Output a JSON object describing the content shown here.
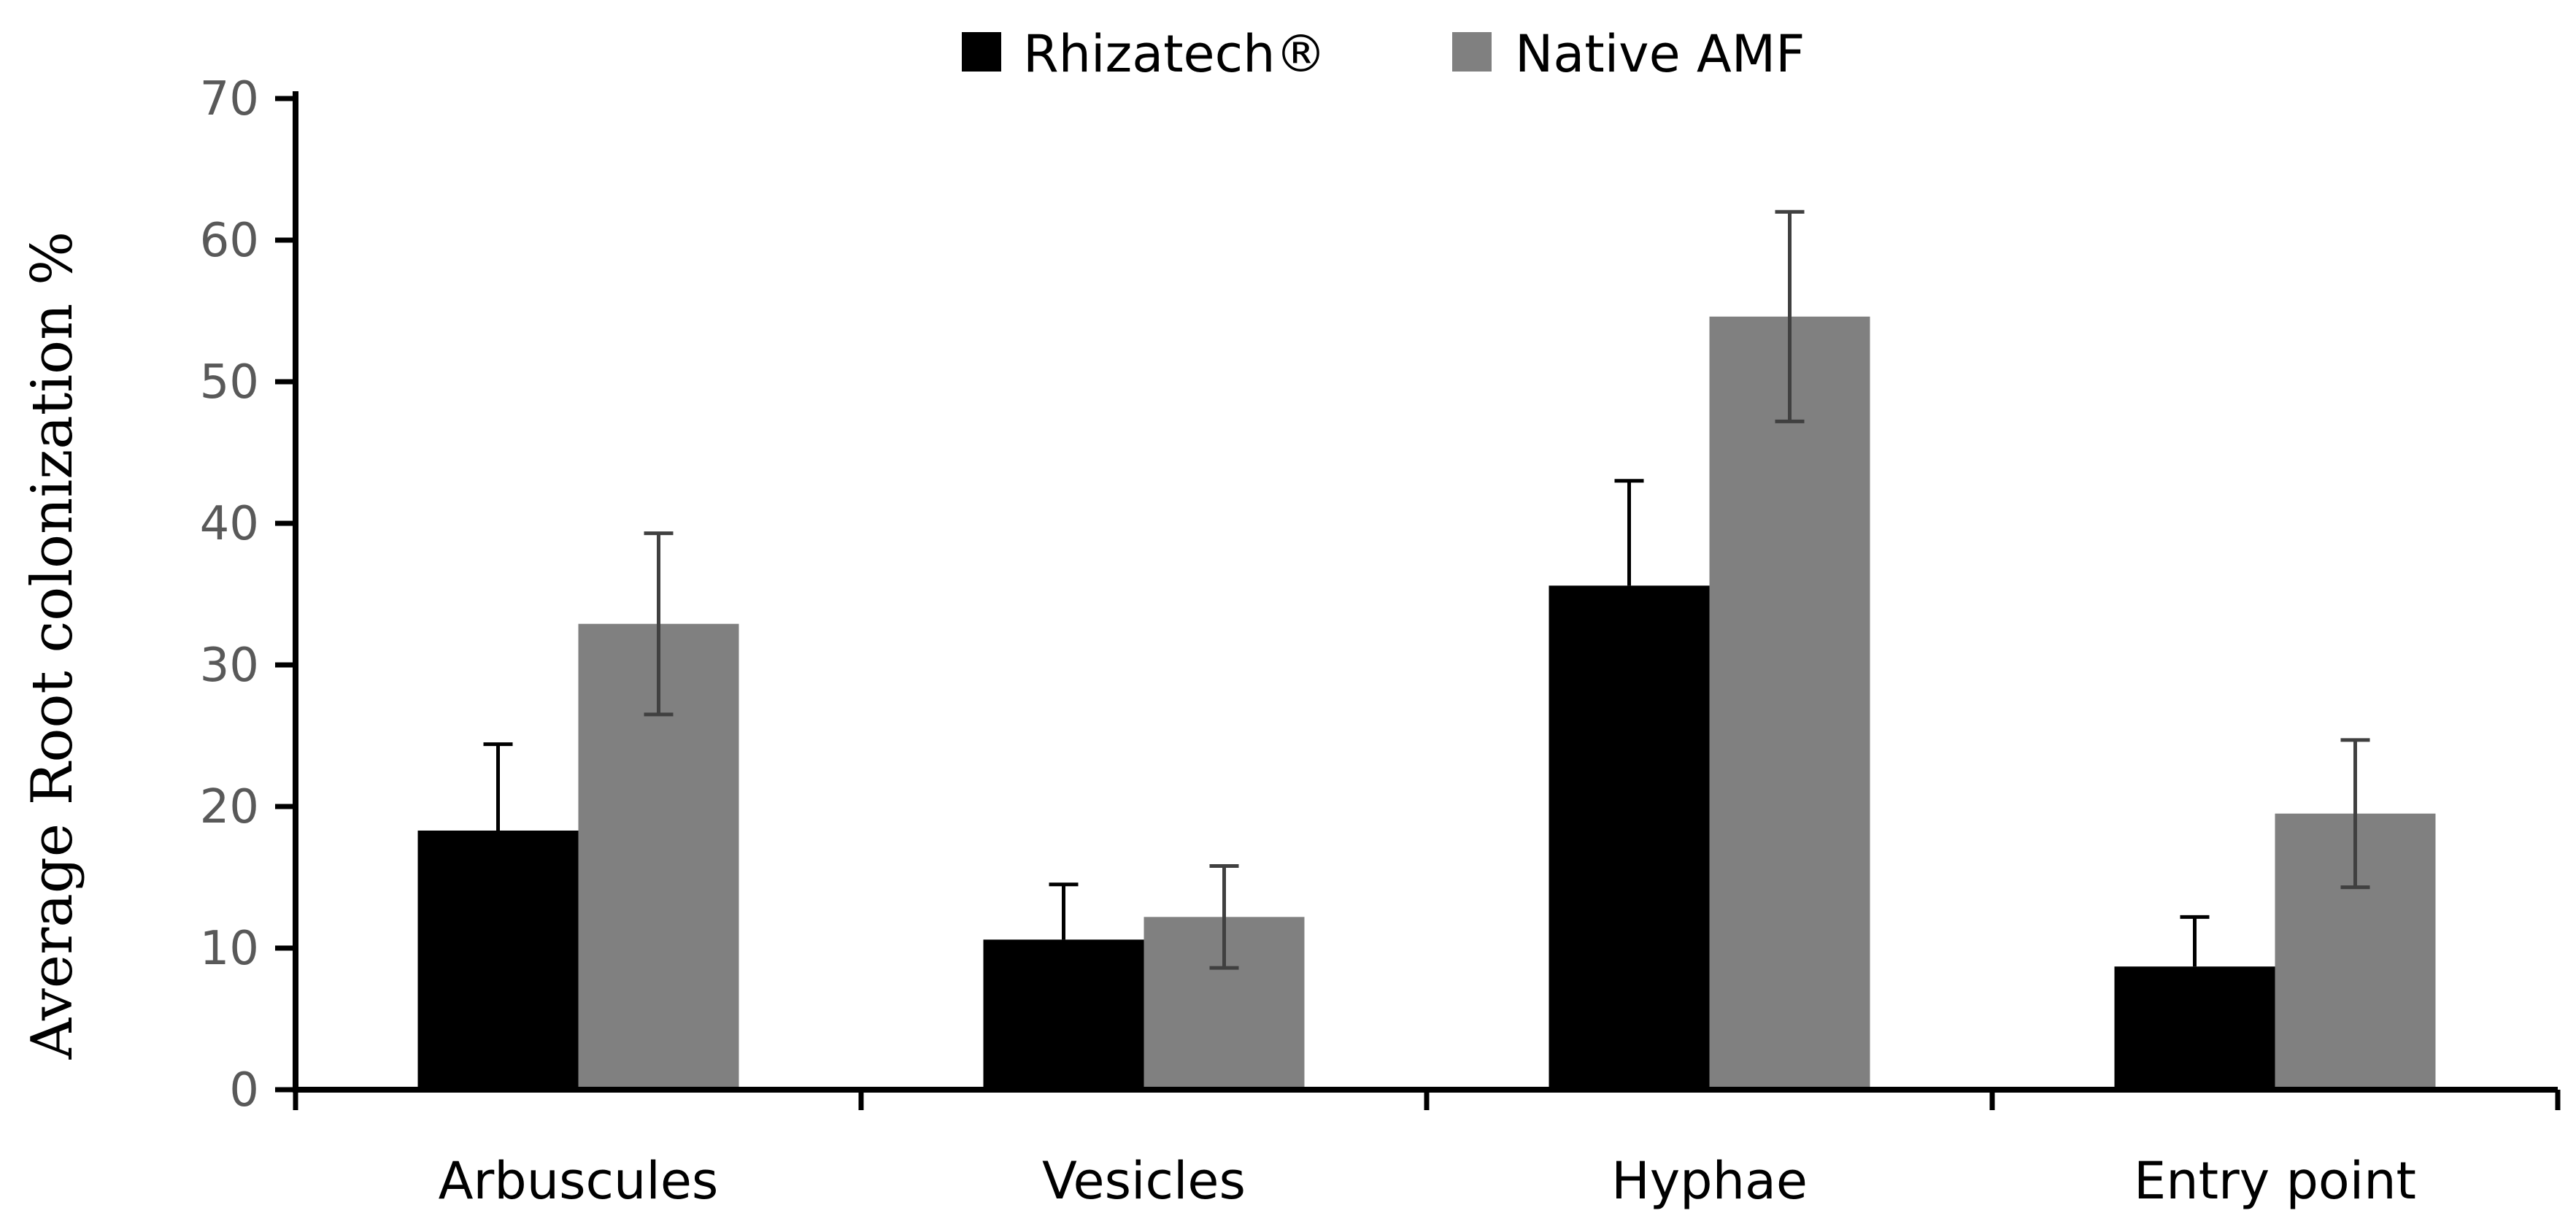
{
  "chart_data": {
    "type": "bar",
    "title": "",
    "xlabel": "",
    "ylabel": "Average Root colonization %",
    "ylim": [
      0,
      70
    ],
    "yticks": [
      0,
      10,
      20,
      30,
      40,
      50,
      60,
      70
    ],
    "categories": [
      "Arbuscules",
      "Vesicles",
      "Hyphae",
      "Entry point"
    ],
    "series": [
      {
        "name": "Rhizatech®",
        "color": "#000000",
        "values": [
          18.3,
          10.6,
          35.6,
          8.7
        ],
        "errors": [
          6.1,
          3.9,
          7.4,
          3.5
        ]
      },
      {
        "name": "Native AMF",
        "color": "#808080",
        "values": [
          32.9,
          12.2,
          54.6,
          19.5
        ],
        "errors": [
          6.4,
          3.6,
          7.4,
          5.2
        ]
      }
    ],
    "legend_position": "top",
    "grid": false
  }
}
